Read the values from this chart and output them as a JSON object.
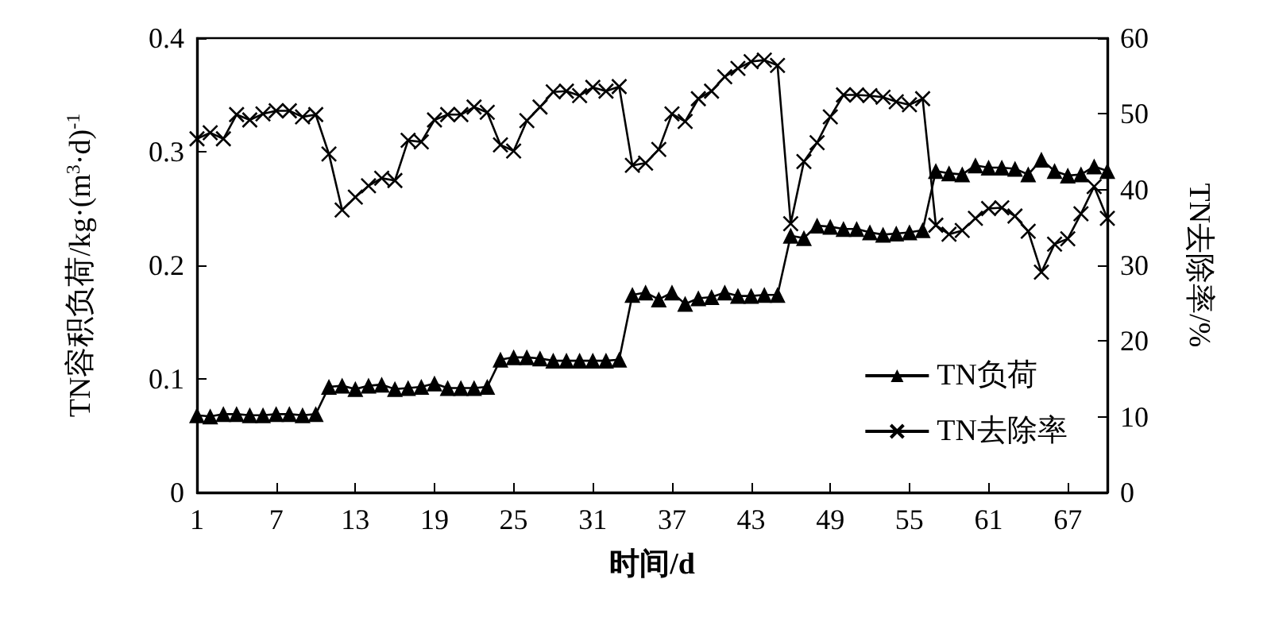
{
  "chart_data": {
    "type": "line",
    "xlabel": "时间/d",
    "ylabel": "TN容积负荷/kg·(m$^{3}$·d)$^{-1}$",
    "y2label": "TN去除率/%",
    "x": [
      1,
      2,
      3,
      4,
      5,
      6,
      7,
      8,
      9,
      10,
      11,
      12,
      13,
      14,
      15,
      16,
      17,
      18,
      19,
      20,
      21,
      22,
      23,
      24,
      25,
      26,
      27,
      28,
      29,
      30,
      31,
      32,
      33,
      34,
      35,
      36,
      37,
      38,
      39,
      40,
      41,
      42,
      43,
      44,
      45,
      46,
      47,
      48,
      49,
      50,
      51,
      52,
      53,
      54,
      55,
      56,
      57,
      58,
      59,
      60,
      61,
      62,
      63,
      64,
      65,
      66,
      67,
      68,
      69,
      70
    ],
    "xlim": [
      1,
      70
    ],
    "xticks": [
      1,
      7,
      13,
      19,
      25,
      31,
      37,
      43,
      49,
      55,
      61,
      67
    ],
    "ylim": [
      0,
      0.4
    ],
    "yticks": [
      0,
      0.1,
      0.2,
      0.3,
      0.4
    ],
    "y2lim": [
      0,
      60
    ],
    "y2ticks": [
      0,
      10,
      20,
      30,
      40,
      50,
      60
    ],
    "grid": false,
    "legend": "bottom right",
    "line_style": "solid",
    "series": [
      {
        "name": "TN负荷",
        "color": "#000000",
        "marker": "triangle",
        "values": [
          0.068,
          0.067,
          0.069,
          0.069,
          0.068,
          0.068,
          0.069,
          0.069,
          0.068,
          0.069,
          0.093,
          0.094,
          0.091,
          0.094,
          0.095,
          0.091,
          0.092,
          0.093,
          0.096,
          0.092,
          0.092,
          0.092,
          0.093,
          0.117,
          0.119,
          0.119,
          0.118,
          0.116,
          0.116,
          0.116,
          0.116,
          0.116,
          0.117,
          0.174,
          0.176,
          0.17,
          0.176,
          0.166,
          0.171,
          0.172,
          0.176,
          0.173,
          0.173,
          0.174,
          0.174,
          0.226,
          0.224,
          0.235,
          0.234,
          0.232,
          0.232,
          0.229,
          0.227,
          0.228,
          0.229,
          0.231,
          0.283,
          0.281,
          0.28,
          0.288,
          0.286,
          0.286,
          0.285,
          0.28,
          0.293,
          0.283,
          0.279,
          0.28,
          0.287,
          0.283
        ]
      },
      {
        "name": "TN去除率",
        "color": "#000000",
        "marker": "cross",
        "axis": "y2",
        "values": [
          46.7,
          47.5,
          46.7,
          49.9,
          49.2,
          50,
          50.4,
          50.4,
          49.6,
          49.9,
          44.7,
          37.3,
          39,
          40.5,
          41.5,
          41.2,
          46.5,
          46.3,
          49.2,
          49.9,
          49.9,
          50.9,
          50.2,
          45.9,
          45.1,
          49.1,
          50.9,
          52.9,
          53,
          52.4,
          53.5,
          53,
          53.6,
          43.2,
          43.5,
          45.3,
          50,
          49,
          52,
          53,
          54.9,
          56,
          56.9,
          57.1,
          56.4,
          35.5,
          43.7,
          46.2,
          49.6,
          52.5,
          52.5,
          52.4,
          52.2,
          51.6,
          51.2,
          52,
          35.3,
          34.1,
          34.6,
          36.2,
          37.5,
          37.6,
          36.5,
          34.5,
          29.1,
          32.8,
          33.5,
          36.8,
          40.4,
          36.2
        ]
      }
    ]
  }
}
